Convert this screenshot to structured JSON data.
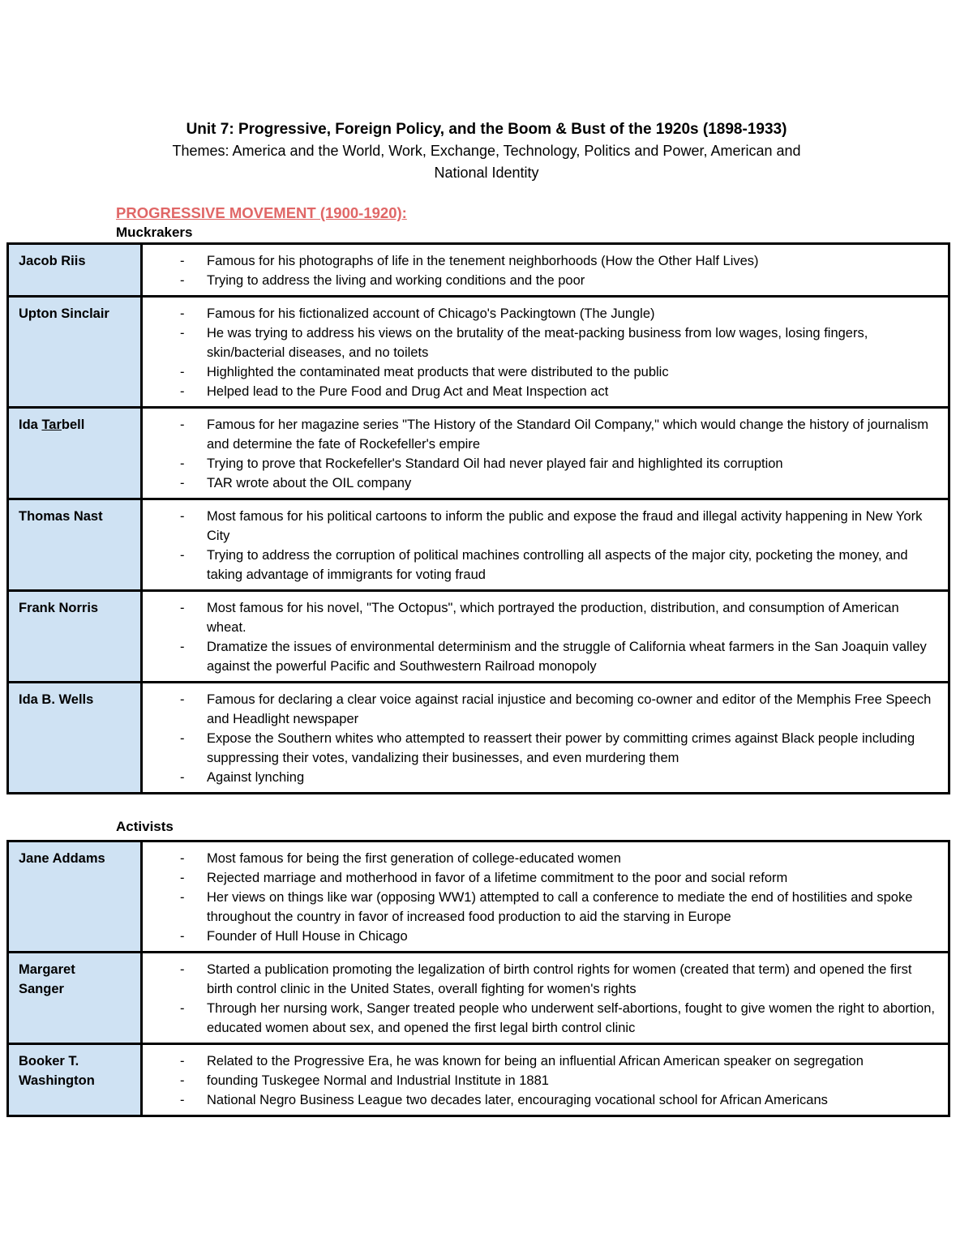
{
  "page": {
    "title": "Unit 7: Progressive, Foreign Policy, and the Boom & Bust of the 1920s (1898-1933)",
    "subtitle_line1": "Themes: America and the World, Work, Exchange, Technology, Politics and Power, American and",
    "subtitle_line2": "National Identity",
    "section_heading": "PROGRESSIVE MOVEMENT (1900-1920):",
    "bullet_char": "-",
    "colors": {
      "section_heading": "#e06666",
      "name_cell_bg": "#cfe2f3",
      "table_border": "#000000",
      "body_text": "#000000"
    }
  },
  "tables": [
    {
      "id": "muckrakers",
      "heading": "Muckrakers",
      "rows": [
        {
          "name": [
            {
              "t": "Jacob Riis"
            }
          ],
          "bullets": [
            "Famous for his photographs of life in the tenement neighborhoods (How the Other Half Lives)",
            "Trying to address the living and working conditions and the poor"
          ]
        },
        {
          "name": [
            {
              "t": "Upton Sinclair"
            }
          ],
          "bullets": [
            "Famous for his fictionalized account of Chicago's Packingtown (The Jungle)",
            "He was trying to address his views on the brutality of the meat-packing business from low wages, losing fingers, skin/bacterial diseases, and no toilets",
            "Highlighted the contaminated meat products that were distributed to the public",
            "Helped lead to the Pure Food and Drug Act and Meat Inspection act"
          ]
        },
        {
          "name": [
            {
              "t": "Ida "
            },
            {
              "t": "Tar",
              "u": true
            },
            {
              "t": "bell"
            }
          ],
          "bullets": [
            "Famous for her magazine series \"The History of the Standard Oil Company,\" which would change the history of journalism and determine the fate of Rockefeller's empire",
            "Trying to prove that Rockefeller's Standard Oil had never played fair and highlighted its corruption",
            "TAR wrote about the OIL company"
          ]
        },
        {
          "name": [
            {
              "t": "Thomas Nast"
            }
          ],
          "bullets": [
            "Most famous for his political cartoons to inform the public and expose the fraud and illegal activity happening in New York City",
            "Trying to address the corruption of political machines controlling all aspects of the major city, pocketing the money, and taking advantage of immigrants for voting fraud"
          ]
        },
        {
          "name": [
            {
              "t": "Frank Norris"
            }
          ],
          "bullets": [
            "Most famous for his novel, \"The Octopus\", which portrayed the production, distribution, and consumption of American wheat.",
            "Dramatize the issues of environmental determinism and the struggle of California wheat farmers in the San Joaquin valley against the powerful Pacific and Southwestern Railroad monopoly"
          ]
        },
        {
          "name": [
            {
              "t": "Ida B. Wells"
            }
          ],
          "bullets": [
            "Famous for declaring a clear voice against racial injustice and becoming co-owner and editor of the Memphis Free Speech and Headlight newspaper",
            "Expose the Southern whites who attempted to reassert their power by committing crimes against Black people including suppressing their votes, vandalizing their businesses, and even murdering them",
            "Against lynching"
          ]
        }
      ]
    },
    {
      "id": "activists",
      "heading": "Activists",
      "rows": [
        {
          "name": [
            {
              "t": "Jane Addams"
            }
          ],
          "bullets": [
            "Most famous for being the first generation of college-educated women",
            "Rejected marriage and motherhood in favor of a lifetime commitment to the poor and social reform",
            "Her views on things like war (opposing WW1) attempted to call a conference to mediate the end of hostilities and spoke throughout the country in favor of increased food production to aid the starving in Europe",
            "Founder of Hull House in Chicago"
          ]
        },
        {
          "name": [
            {
              "t": "Margaret Sanger"
            }
          ],
          "bullets": [
            "Started a publication promoting the legalization of birth control rights for women (created that term) and opened the first birth control clinic in the United States, overall fighting for women's rights",
            "Through her nursing work, Sanger treated people who underwent self-abortions, fought to give women the right to abortion, educated women about sex, and opened the first legal birth control clinic"
          ]
        },
        {
          "name": [
            {
              "t": "Booker T. Washington"
            }
          ],
          "bullets": [
            "Related to the Progressive Era, he was known for being an influential African American speaker on segregation",
            "founding Tuskegee Normal and Industrial Institute in 1881",
            "National Negro Business League two decades later, encouraging vocational school for African Americans"
          ]
        }
      ]
    }
  ]
}
